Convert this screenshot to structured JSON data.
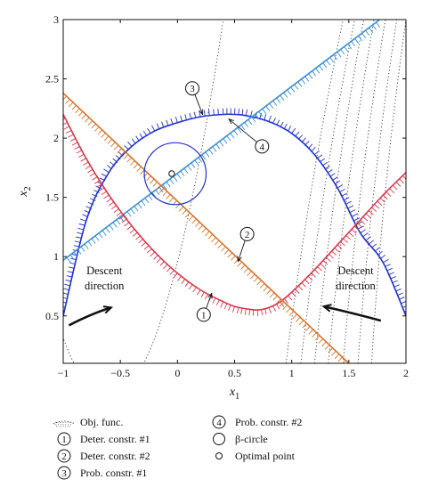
{
  "chart_data": {
    "type": "line",
    "title": "",
    "xlabel": "x",
    "xlabel_sub": "1",
    "ylabel": "x",
    "ylabel_sub": "2",
    "xlim": [
      -1,
      2
    ],
    "ylim": [
      0.1,
      3
    ],
    "xticks": [
      -1,
      -0.5,
      0,
      0.5,
      1,
      1.5,
      2
    ],
    "xtick_labels": [
      "−1",
      "−0.5",
      "0",
      "0.5",
      "1",
      "1.5",
      "2"
    ],
    "yticks": [
      0.5,
      1,
      1.5,
      2,
      2.5,
      3
    ],
    "ytick_labels": [
      "0.5",
      "1",
      "1.5",
      "2",
      "2.5",
      "3"
    ],
    "grid": false,
    "series": [
      {
        "key": "prob1",
        "color": "#2233cc",
        "x": [
          -1.0,
          -0.8,
          -0.6,
          -0.4,
          -0.2,
          0.0,
          0.2,
          0.4,
          0.5,
          0.6,
          0.8,
          1.0,
          1.2,
          1.4,
          1.6,
          1.8,
          2.0
        ],
        "y": [
          0.5,
          1.3,
          1.71,
          1.93,
          2.06,
          2.13,
          2.18,
          2.2,
          2.2,
          2.19,
          2.14,
          2.04,
          1.86,
          1.58,
          1.2,
          0.95,
          0.5
        ]
      },
      {
        "key": "prob2",
        "color": "#3b8fd6",
        "x": [
          -1.0,
          1.77
        ],
        "y": [
          0.97,
          3.0
        ]
      },
      {
        "key": "det1",
        "color": "#d9384e",
        "x": [
          -1.0,
          -0.8,
          -0.6,
          -0.4,
          -0.2,
          0.0,
          0.2,
          0.4,
          0.5,
          0.6,
          0.7,
          0.8,
          0.9,
          1.0,
          1.2,
          1.4,
          1.6,
          1.8,
          2.0
        ],
        "y": [
          2.2,
          1.83,
          1.52,
          1.26,
          1.04,
          0.86,
          0.72,
          0.62,
          0.58,
          0.56,
          0.55,
          0.57,
          0.62,
          0.7,
          0.89,
          1.1,
          1.31,
          1.52,
          1.71
        ]
      },
      {
        "key": "det2",
        "color": "#d8742c",
        "x": [
          -1.0,
          1.5
        ],
        "y": [
          2.38,
          0.1
        ]
      }
    ],
    "beta_circle": {
      "center": [
        -0.02,
        1.7
      ],
      "radius_x": 0.27
    },
    "optimal_point": {
      "x": -0.05,
      "y": 1.7
    },
    "objective_contours": [
      {
        "type": "parabola",
        "vertex": [
          -0.6,
          -0.2
        ],
        "width": 0.65
      },
      {
        "type": "line",
        "x0": 0.95,
        "x1": 1.45
      },
      {
        "type": "line",
        "x0": 1.08,
        "x1": 1.55
      },
      {
        "type": "line",
        "x0": 1.2,
        "x1": 1.63
      },
      {
        "type": "line",
        "x0": 1.32,
        "x1": 1.72
      },
      {
        "type": "line",
        "x0": 1.45,
        "x1": 1.82
      },
      {
        "type": "line",
        "x0": 1.58,
        "x1": 1.92
      },
      {
        "type": "line",
        "x0": 1.7,
        "x1": 2.0
      }
    ],
    "annotations": [
      {
        "num": "3",
        "circle_at": [
          0.13,
          2.42
        ],
        "arrow_to": [
          0.22,
          2.2
        ]
      },
      {
        "num": "4",
        "circle_at": [
          0.74,
          1.93
        ],
        "arrow_to": [
          0.45,
          2.16
        ]
      },
      {
        "num": "2",
        "circle_at": [
          0.61,
          1.19
        ],
        "arrow_to": [
          0.53,
          0.96
        ]
      },
      {
        "num": "1",
        "circle_at": [
          0.23,
          0.51
        ],
        "arrow_to": [
          0.3,
          0.69
        ]
      }
    ],
    "text_annotations": [
      {
        "lines": [
          "Descent",
          "direction"
        ],
        "at": [
          -0.64,
          0.85
        ]
      },
      {
        "lines": [
          "Descent",
          "direction"
        ],
        "at": [
          1.56,
          0.85
        ]
      }
    ],
    "descent_arrows": [
      {
        "from": [
          -0.95,
          0.42
        ],
        "ctrl": [
          -0.75,
          0.52
        ],
        "to": [
          -0.58,
          0.57
        ]
      },
      {
        "from": [
          1.78,
          0.46
        ],
        "ctrl": [
          1.55,
          0.52
        ],
        "to": [
          1.28,
          0.58
        ]
      }
    ],
    "legend": {
      "placement": "bottom",
      "entries": [
        {
          "symbol": "hatch",
          "label": "Obj. func."
        },
        {
          "symbol": "1",
          "label": "Deter. constr. #1"
        },
        {
          "symbol": "2",
          "label": "Deter. constr. #2"
        },
        {
          "symbol": "3",
          "label": "Prob. constr. #1"
        },
        {
          "symbol": "4",
          "label": "Prob. constr. #2"
        },
        {
          "symbol": "big-circle",
          "label": "β-circle"
        },
        {
          "symbol": "small-circle",
          "label": "Optimal point"
        }
      ]
    }
  }
}
